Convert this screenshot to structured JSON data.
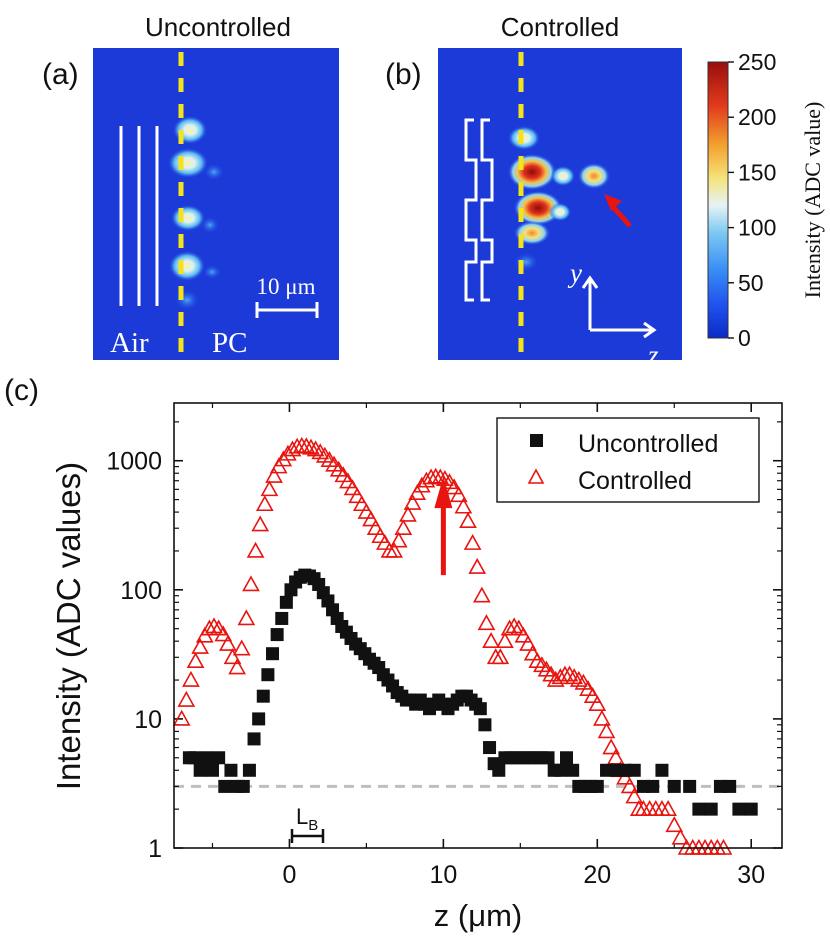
{
  "panel_a": {
    "label": "(a)",
    "title": "Uncontrolled",
    "left_text": "Air",
    "right_text": "PC",
    "scalebar_label": "10 μm"
  },
  "panel_b": {
    "label": "(b)",
    "title": "Controlled",
    "axis_y": "y",
    "axis_z": "z"
  },
  "colorbar": {
    "title": "Intensity (ADC value)",
    "ticks": [
      "0",
      "50",
      "100",
      "150",
      "200",
      "250"
    ],
    "tick_values": [
      0,
      50,
      100,
      150,
      200,
      250
    ],
    "range": [
      0,
      250
    ]
  },
  "panel_c": {
    "label": "(c)",
    "lb_label": "L",
    "lb_sub": "B",
    "colors": {
      "uncontrolled": "#111111",
      "controlled": "#e8140f",
      "arrow": "#e8140f",
      "noise": "#bfbfbf"
    },
    "noise_floor": 3
  },
  "chart_data": {
    "type": "scatter",
    "xlabel": "z (μm)",
    "ylabel": "Intensity (ADC values)",
    "xlim": [
      -7.5,
      32
    ],
    "ylim": [
      1,
      2800
    ],
    "yscale": "log",
    "x_ticks": [
      0,
      10,
      20,
      30
    ],
    "x_tick_labels": [
      "0",
      "10",
      "20",
      "30"
    ],
    "y_ticks": [
      1,
      10,
      100,
      1000
    ],
    "y_tick_labels": [
      "1",
      "10",
      "100",
      "1000"
    ],
    "legend": [
      {
        "name": "Uncontrolled",
        "marker": "filled-square"
      },
      {
        "name": "Controlled",
        "marker": "open-triangle"
      }
    ],
    "legend_position": "top-right",
    "series": [
      {
        "name": "Uncontrolled",
        "marker": "filled-square",
        "x": [
          -6.5,
          -6.2,
          -5.8,
          -5.4,
          -5.0,
          -4.6,
          -4.2,
          -3.8,
          -3.4,
          -3.0,
          -2.6,
          -2.3,
          -2.0,
          -1.7,
          -1.4,
          -1.1,
          -0.8,
          -0.5,
          -0.2,
          0.1,
          0.4,
          0.7,
          1.0,
          1.3,
          1.6,
          1.9,
          2.2,
          2.5,
          2.8,
          3.1,
          3.4,
          3.7,
          4.0,
          4.3,
          4.6,
          4.9,
          5.2,
          5.5,
          5.8,
          6.1,
          6.4,
          6.7,
          7.0,
          7.3,
          7.6,
          7.9,
          8.2,
          8.5,
          8.8,
          9.1,
          9.4,
          9.7,
          10.0,
          10.3,
          10.6,
          10.9,
          11.2,
          11.5,
          11.8,
          12.1,
          12.4,
          12.7,
          13.0,
          13.3,
          13.6,
          14.0,
          14.4,
          14.8,
          15.2,
          15.6,
          16.0,
          16.4,
          16.8,
          17.2,
          17.6,
          18.0,
          18.4,
          18.8,
          19.2,
          19.6,
          20.0,
          20.6,
          21.2,
          21.8,
          22.4,
          23.0,
          23.6,
          24.2,
          25.0,
          26.0,
          26.6,
          27.4,
          28.0,
          28.6,
          29.2,
          30.0
        ],
        "y": [
          5,
          5,
          4,
          5,
          4,
          5,
          3,
          4,
          3,
          3,
          4,
          7,
          10,
          15,
          22,
          32,
          45,
          60,
          80,
          100,
          115,
          125,
          130,
          128,
          122,
          110,
          95,
          82,
          70,
          60,
          52,
          47,
          42,
          38,
          35,
          32,
          29,
          27,
          25,
          22,
          20,
          18,
          16,
          15,
          14,
          14,
          13,
          14,
          13,
          12,
          13,
          14,
          13,
          12,
          13,
          14,
          15,
          15,
          14,
          13,
          12,
          9,
          6,
          4.5,
          4,
          5,
          5,
          5,
          5,
          5,
          5,
          5,
          5,
          4,
          4,
          5,
          4,
          3,
          3,
          3,
          3,
          4,
          4,
          4,
          4,
          3,
          3,
          4,
          3,
          3,
          2,
          2,
          3,
          3,
          2,
          2
        ]
      },
      {
        "name": "Controlled",
        "marker": "open-triangle",
        "x": [
          -7.0,
          -6.7,
          -6.4,
          -6.1,
          -5.8,
          -5.5,
          -5.2,
          -4.9,
          -4.6,
          -4.3,
          -4.0,
          -3.7,
          -3.4,
          -3.1,
          -2.8,
          -2.5,
          -2.2,
          -1.9,
          -1.6,
          -1.3,
          -1.0,
          -0.7,
          -0.4,
          -0.1,
          0.2,
          0.5,
          0.8,
          1.1,
          1.4,
          1.7,
          2.0,
          2.3,
          2.6,
          2.9,
          3.2,
          3.5,
          3.8,
          4.1,
          4.4,
          4.7,
          5.0,
          5.3,
          5.6,
          5.9,
          6.2,
          6.5,
          6.8,
          7.1,
          7.4,
          7.7,
          8.0,
          8.3,
          8.6,
          8.9,
          9.2,
          9.5,
          9.8,
          10.1,
          10.4,
          10.7,
          11.0,
          11.3,
          11.6,
          11.9,
          12.2,
          12.5,
          12.8,
          13.1,
          13.4,
          13.7,
          14.0,
          14.3,
          14.6,
          14.9,
          15.2,
          15.5,
          15.8,
          16.1,
          16.4,
          16.7,
          17.0,
          17.3,
          17.6,
          17.9,
          18.2,
          18.5,
          18.8,
          19.1,
          19.4,
          19.7,
          20.0,
          20.3,
          20.6,
          20.9,
          21.2,
          21.5,
          21.8,
          22.1,
          22.4,
          22.7,
          23.0,
          23.4,
          23.8,
          24.2,
          24.6,
          25.0,
          25.4,
          25.8,
          26.2,
          26.6,
          27.0,
          27.4,
          27.8,
          28.2
        ],
        "y": [
          10,
          14,
          20,
          28,
          36,
          44,
          50,
          52,
          50,
          45,
          38,
          30,
          25,
          35,
          60,
          110,
          200,
          320,
          460,
          600,
          760,
          900,
          1020,
          1130,
          1220,
          1280,
          1300,
          1290,
          1260,
          1220,
          1160,
          1090,
          1010,
          930,
          850,
          770,
          690,
          610,
          530,
          460,
          400,
          350,
          300,
          260,
          230,
          200,
          200,
          240,
          300,
          380,
          470,
          560,
          640,
          700,
          740,
          750,
          740,
          720,
          680,
          620,
          540,
          440,
          340,
          230,
          150,
          90,
          55,
          40,
          30,
          30,
          40,
          50,
          52,
          50,
          44,
          38,
          32,
          28,
          26,
          24,
          22,
          20,
          21,
          22,
          22,
          21,
          20,
          19,
          17,
          15,
          13,
          10,
          8,
          6,
          5,
          4,
          3.5,
          3,
          2.5,
          2,
          2,
          2,
          2,
          2,
          2,
          1.5,
          1.2,
          1,
          1,
          1,
          1,
          1,
          1,
          1
        ]
      }
    ]
  }
}
